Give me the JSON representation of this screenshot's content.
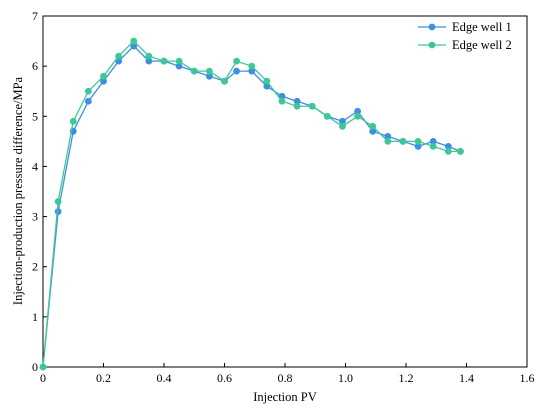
{
  "chart_data": {
    "type": "line",
    "xlabel": "Injection PV",
    "ylabel": "Injection-production pressure difference/MPa",
    "xlim": [
      0,
      1.6
    ],
    "ylim": [
      0,
      7
    ],
    "xticks": [
      "0",
      "0.2",
      "0.4",
      "0.6",
      "0.8",
      "1.0",
      "1.2",
      "1.4",
      "1.6"
    ],
    "yticks": [
      "0",
      "1",
      "2",
      "3",
      "4",
      "5",
      "6",
      "7"
    ],
    "legend_position": "top-right",
    "grid": false,
    "series": [
      {
        "name": "Edge well 1",
        "color": "#3d8fe0",
        "x": [
          0,
          0.05,
          0.1,
          0.15,
          0.2,
          0.25,
          0.3,
          0.35,
          0.4,
          0.45,
          0.5,
          0.55,
          0.6,
          0.64,
          0.69,
          0.74,
          0.79,
          0.84,
          0.89,
          0.94,
          0.99,
          1.04,
          1.09,
          1.14,
          1.19,
          1.24,
          1.29,
          1.34,
          1.38
        ],
        "y": [
          0,
          3.1,
          4.7,
          5.3,
          5.7,
          6.1,
          6.4,
          6.1,
          6.1,
          6.0,
          5.9,
          5.8,
          5.7,
          5.9,
          5.9,
          5.6,
          5.4,
          5.3,
          5.2,
          5.0,
          4.9,
          5.1,
          4.7,
          4.6,
          4.5,
          4.4,
          4.5,
          4.4,
          4.3
        ]
      },
      {
        "name": "Edge well 2",
        "color": "#3ec896",
        "x": [
          0,
          0.05,
          0.1,
          0.15,
          0.2,
          0.25,
          0.3,
          0.35,
          0.4,
          0.45,
          0.5,
          0.55,
          0.6,
          0.64,
          0.69,
          0.74,
          0.79,
          0.84,
          0.89,
          0.94,
          0.99,
          1.04,
          1.09,
          1.14,
          1.19,
          1.24,
          1.29,
          1.34,
          1.38
        ],
        "y": [
          0,
          3.3,
          4.9,
          5.5,
          5.8,
          6.2,
          6.5,
          6.2,
          6.1,
          6.1,
          5.9,
          5.9,
          5.7,
          6.1,
          6.0,
          5.7,
          5.3,
          5.2,
          5.2,
          5.0,
          4.8,
          5.0,
          4.8,
          4.5,
          4.5,
          4.5,
          4.4,
          4.3,
          4.3
        ]
      }
    ]
  }
}
